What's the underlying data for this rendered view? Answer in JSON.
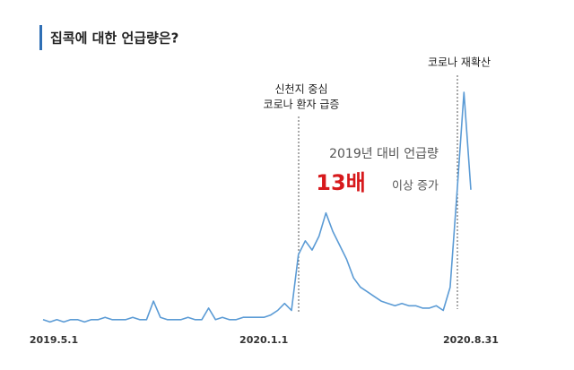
{
  "chart_data": {
    "type": "line",
    "title": "집콕에 대한 언급량은?",
    "categories": [
      "2019.5.1",
      null,
      null,
      null,
      null,
      null,
      null,
      null,
      null,
      null,
      null,
      null,
      null,
      null,
      null,
      null,
      null,
      null,
      null,
      null,
      null,
      null,
      null,
      null,
      null,
      null,
      null,
      null,
      null,
      null,
      null,
      null,
      "2020.1.1",
      null,
      null,
      null,
      null,
      null,
      null,
      null,
      null,
      null,
      null,
      null,
      null,
      null,
      null,
      null,
      null,
      null,
      null,
      null,
      null,
      null,
      null,
      null,
      null,
      null,
      null,
      null,
      null,
      null,
      "2020.8.31"
    ],
    "series": [
      {
        "name": "언급량",
        "color": "#5b9bd5",
        "values": [
          2,
          1,
          2,
          1,
          2,
          2,
          1,
          2,
          2,
          3,
          2,
          2,
          2,
          3,
          2,
          2,
          10,
          3,
          2,
          2,
          2,
          3,
          2,
          2,
          7,
          2,
          3,
          2,
          2,
          3,
          3,
          3,
          3,
          4,
          6,
          9,
          6,
          30,
          36,
          32,
          38,
          48,
          40,
          34,
          28,
          20,
          16,
          14,
          12,
          10,
          9,
          8,
          9,
          8,
          8,
          7,
          7,
          8,
          6,
          16,
          57,
          100,
          58
        ]
      }
    ],
    "ylim": [
      0,
      100
    ],
    "annotations": [
      [
        "신천지 중심",
        "코로나 환자 급증"
      ],
      [
        "코로나 재확산"
      ]
    ],
    "callout": {
      "prefix": "2019년 대비 언급량",
      "highlight": "13배",
      "suffix": "이상 증가"
    }
  }
}
